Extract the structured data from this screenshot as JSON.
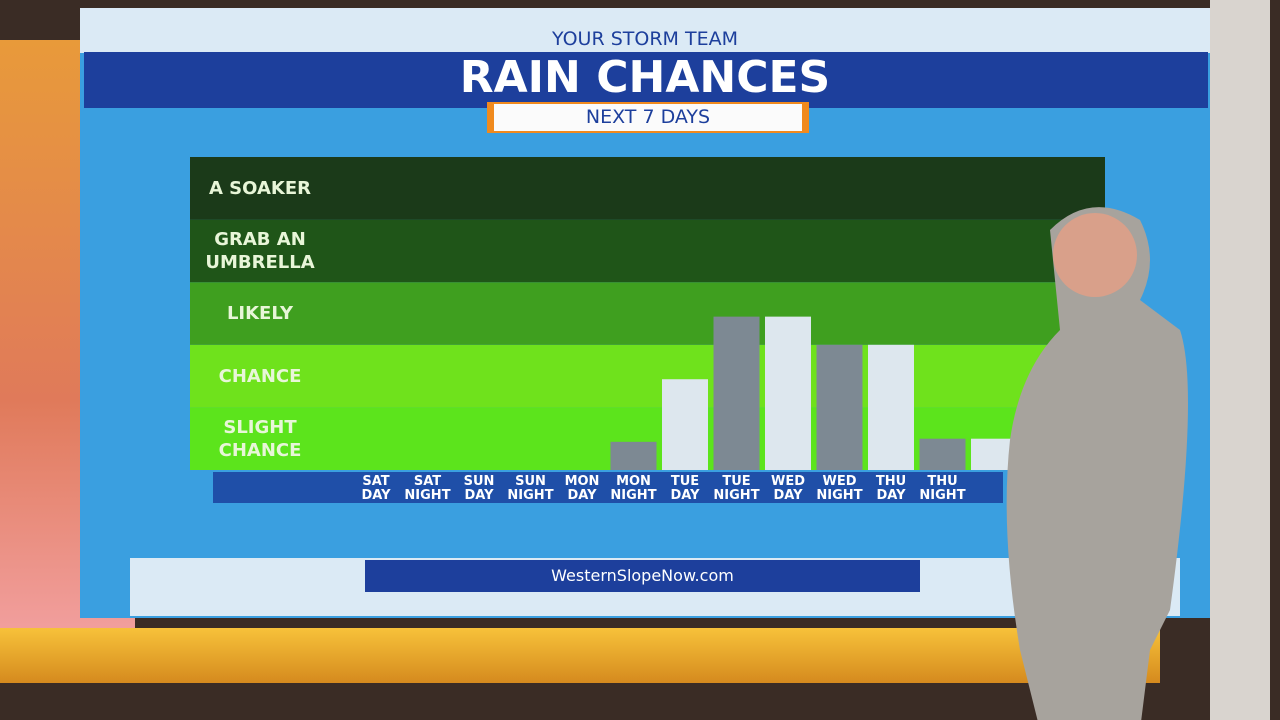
{
  "chart_data": {
    "type": "bar",
    "subtitle": "YOUR STORM TEAM",
    "title": "RAIN CHANCES",
    "period": "NEXT 7 DAYS",
    "footer": "WesternSlopeNow.com",
    "categories": [
      "SAT DAY",
      "SAT NIGHT",
      "SUN DAY",
      "SUN NIGHT",
      "MON DAY",
      "MON NIGHT",
      "TUE DAY",
      "TUE NIGHT",
      "WED DAY",
      "WED NIGHT",
      "THU DAY",
      "THU NIGHT",
      null
    ],
    "values": [
      0,
      0,
      0,
      0,
      0,
      0.45,
      1.45,
      2.45,
      2.45,
      2,
      2,
      0.5,
      0.5
    ],
    "colors": [
      "#7d8993",
      "#dde7ee",
      "#7d8993",
      "#dde7ee",
      "#7d8993",
      "#7d8993",
      "#dde7ee",
      "#7d8993",
      "#dde7ee",
      "#7d8993",
      "#dde7ee",
      "#7d8993",
      "#dde7ee"
    ],
    "ylim": [
      0,
      5
    ],
    "yticks": [
      {
        "value": 0.5,
        "label": "SLIGHT CHANCE"
      },
      {
        "value": 1.5,
        "label": "CHANCE"
      },
      {
        "value": 2.5,
        "label": "LIKELY"
      },
      {
        "value": 3.5,
        "label": "GRAB AN UMBRELLA"
      },
      {
        "value": 4.5,
        "label": "A SOAKER"
      }
    ],
    "band_colors": [
      "#5ce41c",
      "#6fe21c",
      "#3f9f1f",
      "#1f5518",
      "#1b3a19"
    ]
  }
}
